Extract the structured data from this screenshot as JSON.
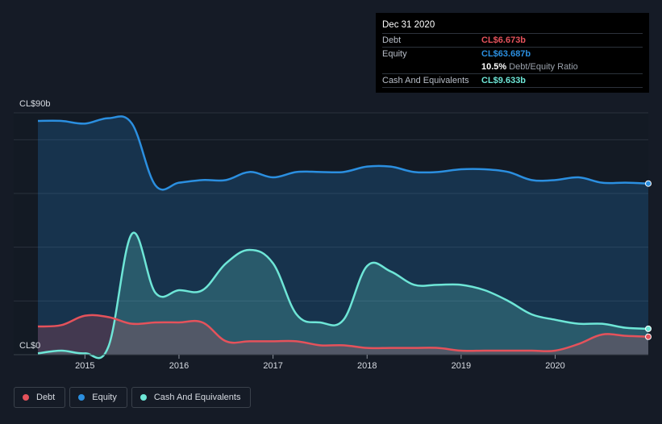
{
  "tooltip": {
    "date": "Dec 31 2020",
    "debt_label": "Debt",
    "debt_value": "CL$6.673b",
    "equity_label": "Equity",
    "equity_value": "CL$63.687b",
    "ratio_pct": "10.5%",
    "ratio_label": "Debt/Equity Ratio",
    "cash_label": "Cash And Equivalents",
    "cash_value": "CL$9.633b"
  },
  "legend": {
    "debt": "Debt",
    "equity": "Equity",
    "cash": "Cash And Equivalents"
  },
  "colors": {
    "background": "#151b26",
    "debt": "#e5525b",
    "equity": "#2b8fe0",
    "cash": "#6ee6d7",
    "grid": "#2a313c"
  },
  "chart_data": {
    "type": "area",
    "ylabel_top": "CL$90b",
    "ylabel_bottom": "CL$0",
    "ylim": [
      0,
      90
    ],
    "xlim": [
      2014.5,
      2020.99
    ],
    "x_ticks": [
      2015,
      2016,
      2017,
      2018,
      2019,
      2020
    ],
    "x_tick_labels": [
      "2015",
      "2016",
      "2017",
      "2018",
      "2019",
      "2020"
    ],
    "grid": true,
    "legend_position": "bottom-left",
    "series": [
      {
        "name": "Equity",
        "key": "equity",
        "x": [
          2014.5,
          2014.75,
          2015.0,
          2015.25,
          2015.5,
          2015.75,
          2016.0,
          2016.25,
          2016.5,
          2016.75,
          2017.0,
          2017.25,
          2017.5,
          2017.75,
          2018.0,
          2018.25,
          2018.5,
          2018.75,
          2019.0,
          2019.25,
          2019.5,
          2019.75,
          2020.0,
          2020.25,
          2020.5,
          2020.75,
          2020.99
        ],
        "values": [
          87,
          87,
          86,
          88,
          86,
          63,
          64,
          65,
          65,
          68,
          66,
          68,
          68,
          68,
          70,
          70,
          68,
          68,
          69,
          69,
          68,
          65,
          65,
          66,
          64,
          64,
          63.687
        ]
      },
      {
        "name": "Cash And Equivalents",
        "key": "cash",
        "x": [
          2014.5,
          2014.75,
          2015.0,
          2015.25,
          2015.5,
          2015.75,
          2016.0,
          2016.25,
          2016.5,
          2016.75,
          2017.0,
          2017.25,
          2017.5,
          2017.75,
          2018.0,
          2018.25,
          2018.5,
          2018.75,
          2019.0,
          2019.25,
          2019.5,
          2019.75,
          2020.0,
          2020.25,
          2020.5,
          2020.75,
          2020.99
        ],
        "values": [
          0.5,
          1.5,
          0.5,
          3,
          45,
          23,
          24,
          24,
          34,
          39,
          34,
          15,
          12,
          13,
          33,
          31,
          26,
          26,
          26,
          24,
          20,
          15,
          13,
          11.5,
          11.5,
          10,
          9.633
        ]
      },
      {
        "name": "Debt",
        "key": "debt",
        "x": [
          2014.5,
          2014.75,
          2015.0,
          2015.25,
          2015.5,
          2015.75,
          2016.0,
          2016.25,
          2016.5,
          2016.75,
          2017.0,
          2017.25,
          2017.5,
          2017.75,
          2018.0,
          2018.25,
          2018.5,
          2018.75,
          2019.0,
          2019.25,
          2019.5,
          2019.75,
          2020.0,
          2020.25,
          2020.5,
          2020.75,
          2020.99
        ],
        "values": [
          10.5,
          11,
          14.5,
          14,
          11.5,
          12,
          12,
          12,
          5,
          5,
          5,
          5,
          3.5,
          3.5,
          2.5,
          2.5,
          2.5,
          2.5,
          1.5,
          1.5,
          1.5,
          1.5,
          1.5,
          4,
          7.5,
          7,
          6.673
        ]
      }
    ]
  }
}
